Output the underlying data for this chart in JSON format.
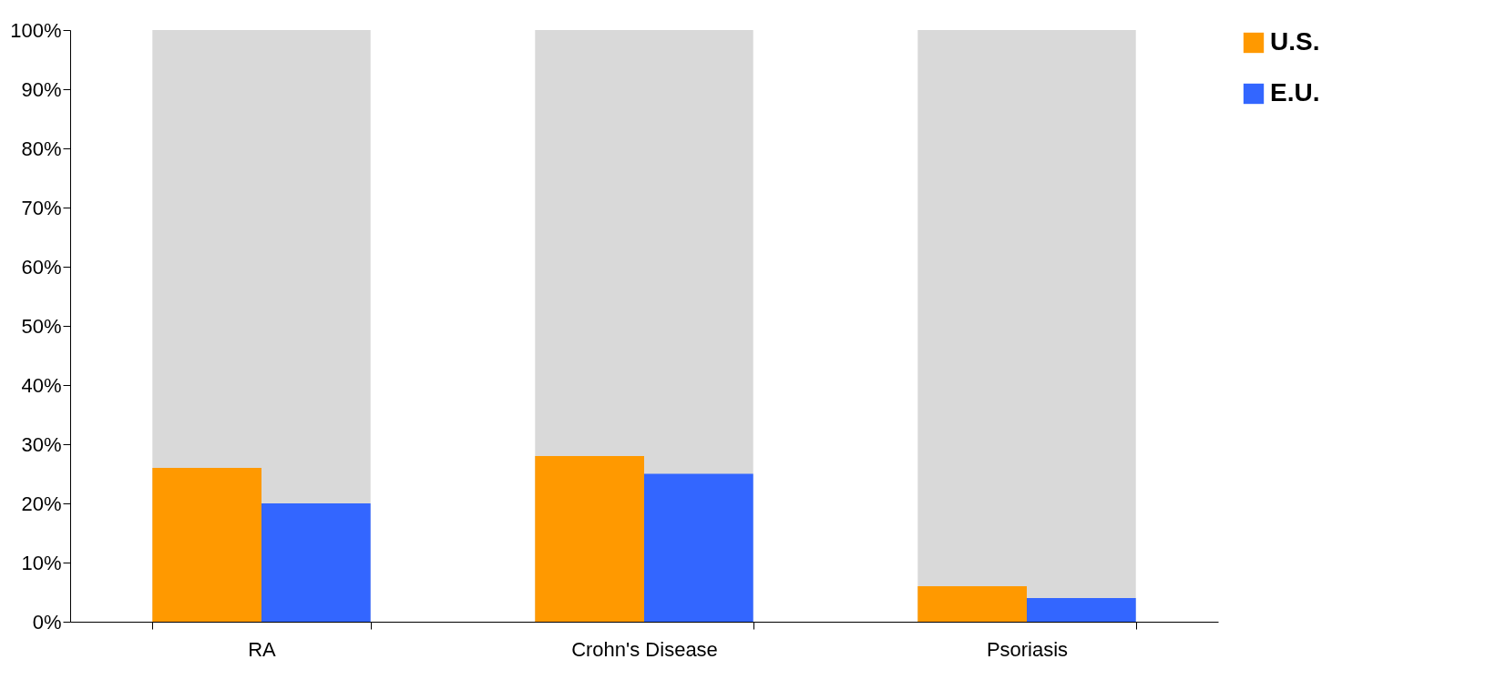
{
  "chart_data": {
    "type": "bar",
    "categories": [
      "RA",
      "Crohn's Disease",
      "Psoriasis"
    ],
    "series": [
      {
        "color": "#d9d9d9",
        "values": [
          100,
          100,
          100
        ]
      },
      {
        "name": "U.S.",
        "color": "#ff9900",
        "values": [
          26,
          28,
          6
        ]
      },
      {
        "name": "E.U.",
        "color": "#3366ff",
        "values": [
          20,
          25,
          4
        ]
      }
    ],
    "ylim": [
      0,
      100
    ],
    "yticks": [
      {
        "value": 0,
        "label": "0%"
      },
      {
        "value": 10,
        "label": "10%"
      },
      {
        "value": 20,
        "label": "20%"
      },
      {
        "value": 30,
        "label": "30%"
      },
      {
        "value": 40,
        "label": "40%"
      },
      {
        "value": 50,
        "label": "50%"
      },
      {
        "value": 60,
        "label": "60%"
      },
      {
        "value": 70,
        "label": "70%"
      },
      {
        "value": 80,
        "label": "80%"
      },
      {
        "value": 90,
        "label": "90%"
      },
      {
        "value": 100,
        "label": "100%"
      }
    ],
    "grid": false,
    "legend": "right"
  }
}
